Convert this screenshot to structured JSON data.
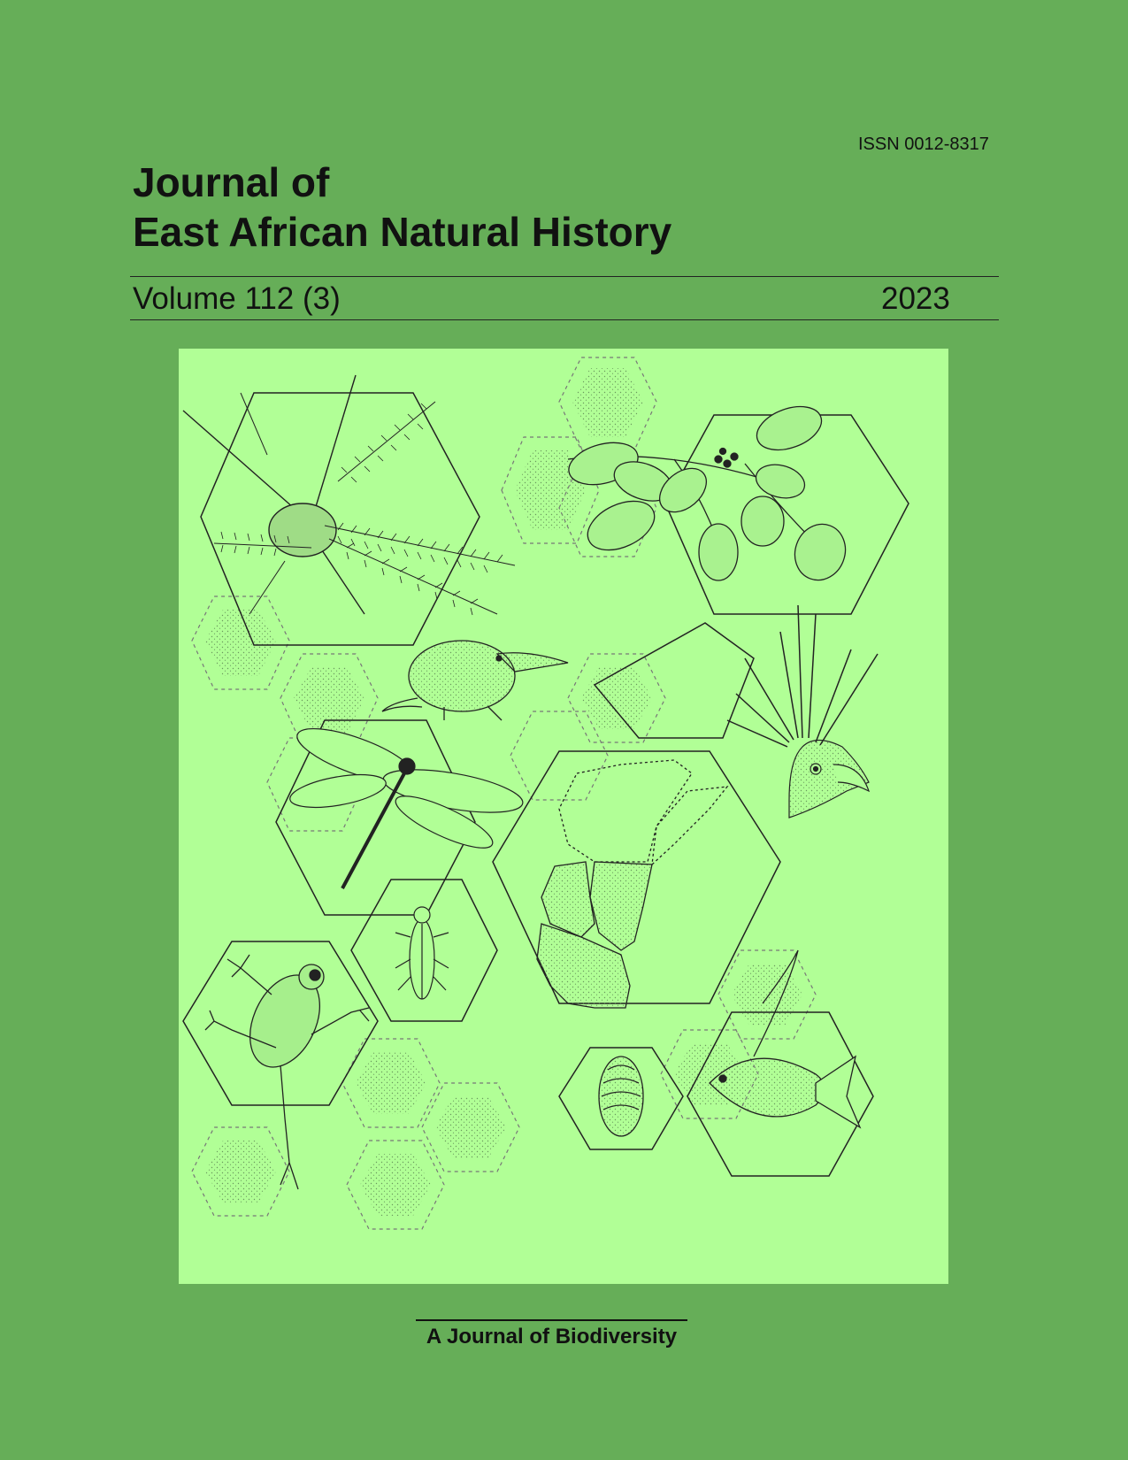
{
  "cover": {
    "issn": "ISSN 0012-8317",
    "title_line1": "Journal of",
    "title_line2": "East African Natural History",
    "volume": "Volume 112 (3)",
    "year": "2023",
    "tagline": "A Journal of Biodiversity"
  },
  "colors": {
    "background": "#66ae58",
    "art_panel": "#b1ff96",
    "ink": "#111111"
  },
  "illustration": {
    "subjects": [
      "acacia-branch-icon",
      "leafy-plant-icon",
      "elephant-shrew-icon",
      "dragonfly-icon",
      "crested-bird-icon",
      "east-africa-map-icon",
      "beetle-icon",
      "tree-frog-icon",
      "seashell-icon",
      "angelfish-icon"
    ]
  }
}
